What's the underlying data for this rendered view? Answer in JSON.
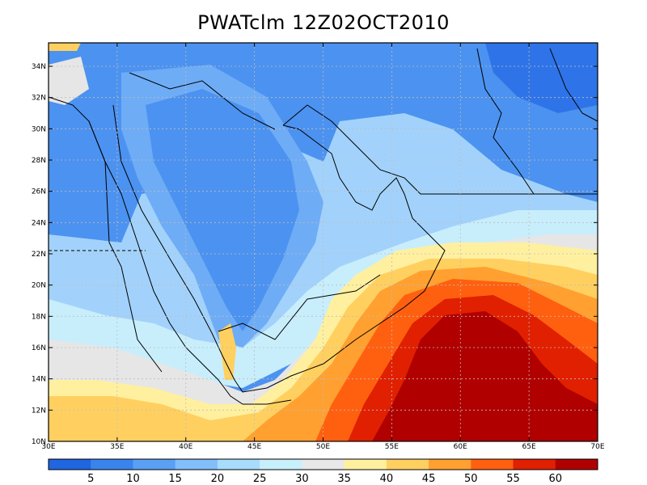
{
  "title": "PWATclm 12Z02OCT2010",
  "lon_labels": [
    "30E",
    "35E",
    "40E",
    "45E",
    "50E",
    "55E",
    "60E",
    "65E",
    "70E"
  ],
  "lat_labels": [
    "10N",
    "12N",
    "14N",
    "16N",
    "18N",
    "20N",
    "22N",
    "24N",
    "26N",
    "28N",
    "30N",
    "32N",
    "34N"
  ],
  "colorbar": {
    "labels": [
      "5",
      "10",
      "15",
      "20",
      "25",
      "30",
      "35",
      "40",
      "45",
      "50",
      "55",
      "60"
    ],
    "colors": [
      "#1f66e0",
      "#3a84ee",
      "#5aa0f4",
      "#82befa",
      "#a8dcfc",
      "#c8f0fc",
      "#e8e8e8",
      "#fff0a0",
      "#ffd060",
      "#ffa030",
      "#ff6010",
      "#e02000",
      "#b00000"
    ]
  },
  "palette": {
    "deep_blue": "#2e74e8",
    "blue": "#4c92f0",
    "mid_blue": "#6eacf6",
    "light_blue": "#a2d2fb",
    "pale_cyan": "#c8eefc",
    "grey": "#e6e6e6",
    "pale_yellow": "#fff0a0",
    "yellow": "#ffd060",
    "orange": "#ffa030",
    "red_orange": "#ff6010",
    "red": "#e02000",
    "dark_red": "#b00000"
  }
}
